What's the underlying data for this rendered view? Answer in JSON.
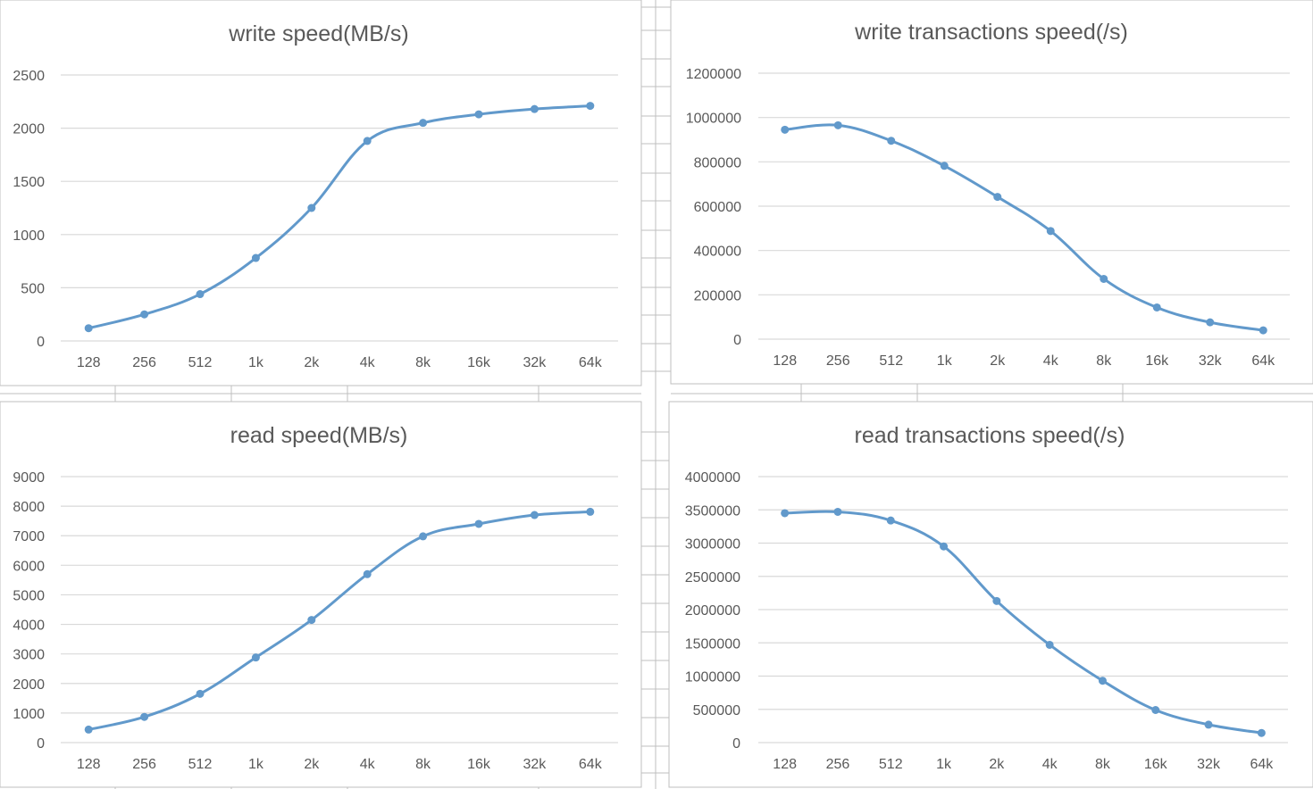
{
  "colors": {
    "line": "#6199cb",
    "grid": "#d9d9d9",
    "axis_text": "#595959",
    "title_text": "#595959",
    "panel_border": "#bfbfbf"
  },
  "chart_data": [
    {
      "type": "line",
      "title": "write speed(MB/s)",
      "categories": [
        "128",
        "256",
        "512",
        "1k",
        "2k",
        "4k",
        "8k",
        "16k",
        "32k",
        "64k"
      ],
      "values": [
        120,
        250,
        440,
        780,
        1250,
        1880,
        2050,
        2130,
        2180,
        2210
      ],
      "ylim": [
        0,
        2500
      ],
      "yticks": [
        0,
        500,
        1000,
        1500,
        2000,
        2500
      ],
      "ytick_labels": [
        "0",
        "500",
        "1000",
        "1500",
        "2000",
        "2500"
      ],
      "grid": true
    },
    {
      "type": "line",
      "title": "write transactions speed(/s)",
      "categories": [
        "128",
        "256",
        "512",
        "1k",
        "2k",
        "4k",
        "8k",
        "16k",
        "32k",
        "64k"
      ],
      "values": [
        945000,
        965000,
        895000,
        782000,
        642000,
        488000,
        272000,
        143000,
        76000,
        40000
      ],
      "ylim": [
        0,
        1200000
      ],
      "yticks": [
        0,
        200000,
        400000,
        600000,
        800000,
        1000000,
        1200000
      ],
      "ytick_labels": [
        "0",
        "200000",
        "400000",
        "600000",
        "800000",
        "1000000",
        "1200000"
      ],
      "grid": true
    },
    {
      "type": "line",
      "title": "read speed(MB/s)",
      "categories": [
        "128",
        "256",
        "512",
        "1k",
        "2k",
        "4k",
        "8k",
        "16k",
        "32k",
        "64k"
      ],
      "values": [
        440,
        870,
        1650,
        2880,
        4150,
        5700,
        6980,
        7400,
        7700,
        7810
      ],
      "ylim": [
        0,
        9000
      ],
      "yticks": [
        0,
        1000,
        2000,
        3000,
        4000,
        5000,
        6000,
        7000,
        8000,
        9000
      ],
      "ytick_labels": [
        "0",
        "1000",
        "2000",
        "3000",
        "4000",
        "5000",
        "6000",
        "7000",
        "8000",
        "9000"
      ],
      "grid": true
    },
    {
      "type": "line",
      "title": "read transactions speed(/s)",
      "categories": [
        "128",
        "256",
        "512",
        "1k",
        "2k",
        "4k",
        "8k",
        "16k",
        "32k",
        "64k"
      ],
      "values": [
        3450000,
        3470000,
        3340000,
        2950000,
        2130000,
        1470000,
        930000,
        490000,
        270000,
        145000
      ],
      "ylim": [
        0,
        4000000
      ],
      "yticks": [
        0,
        500000,
        1000000,
        1500000,
        2000000,
        2500000,
        3000000,
        3500000,
        4000000
      ],
      "ytick_labels": [
        "0",
        "500000",
        "1000000",
        "1500000",
        "2000000",
        "2500000",
        "3000000",
        "3500000",
        "4000000"
      ],
      "grid": true
    }
  ]
}
